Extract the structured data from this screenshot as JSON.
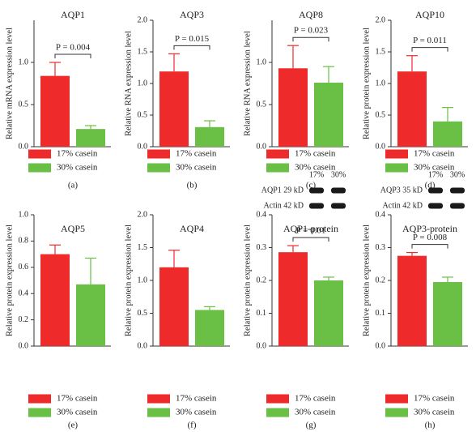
{
  "chart_data": [
    {
      "type": "bar",
      "panel": "(a)",
      "title": "AQP1",
      "ylabel": "Relative mRNA expression level",
      "annotation": "P = 0.004",
      "ylim": [
        0,
        1.5
      ],
      "yticks": [
        {
          "value": 0,
          "label": "0.0"
        },
        0.5,
        {
          "value": 1,
          "label": "1.0"
        }
      ],
      "series": [
        {
          "name": "17% casein",
          "color": "#ee2a2a",
          "values": [
            0.84
          ],
          "errors": [
            0.16
          ]
        },
        {
          "name": "30% casein",
          "color": "#6abf45",
          "values": [
            0.21
          ],
          "errors": [
            0.04
          ]
        }
      ]
    },
    {
      "type": "bar",
      "panel": "(b)",
      "title": "AQP3",
      "ylabel": "Relative RNA expression level",
      "annotation": "P = 0.015",
      "ylim": [
        0,
        2
      ],
      "yticks": [
        {
          "value": 0,
          "label": "0.0"
        },
        0.5,
        {
          "value": 1,
          "label": "1.0"
        },
        1.5,
        {
          "value": 2,
          "label": "2.0"
        }
      ],
      "series": [
        {
          "name": "17% casein",
          "color": "#ee2a2a",
          "values": [
            1.19
          ],
          "errors": [
            0.28
          ]
        },
        {
          "name": "30% casein",
          "color": "#6abf45",
          "values": [
            0.31
          ],
          "errors": [
            0.1
          ]
        }
      ]
    },
    {
      "type": "bar",
      "panel": "(c)",
      "title": "AQP8",
      "ylabel": "Relative RNA expression level",
      "annotation": "P = 0.023",
      "ylim": [
        0,
        1.5
      ],
      "yticks": [
        {
          "value": 0,
          "label": "0.0"
        },
        0.5,
        {
          "value": 1,
          "label": "1.0"
        }
      ],
      "series": [
        {
          "name": "17% casein",
          "color": "#ee2a2a",
          "values": [
            0.93
          ],
          "errors": [
            0.27
          ]
        },
        {
          "name": "30% casein",
          "color": "#6abf45",
          "values": [
            0.76
          ],
          "errors": [
            0.19
          ]
        }
      ]
    },
    {
      "type": "bar",
      "panel": "(d)",
      "title": "AQP10",
      "ylabel": "Relative protein expression level",
      "annotation": "P = 0.011",
      "ylim": [
        0,
        2
      ],
      "yticks": [
        {
          "value": 0,
          "label": "0.0"
        },
        0.5,
        {
          "value": 1,
          "label": "1.0"
        },
        1.5,
        {
          "value": 2,
          "label": "2.0"
        }
      ],
      "series": [
        {
          "name": "17% casein",
          "color": "#ee2a2a",
          "values": [
            1.19
          ],
          "errors": [
            0.25
          ]
        },
        {
          "name": "30% casein",
          "color": "#6abf45",
          "values": [
            0.4
          ],
          "errors": [
            0.22
          ]
        }
      ]
    },
    {
      "type": "bar",
      "panel": "(e)",
      "title": "AQP5",
      "ylabel": "Relative protein expression level",
      "ylim": [
        0,
        1
      ],
      "yticks": [
        {
          "value": 0,
          "label": "0.0"
        },
        0.2,
        0.4,
        0.6,
        0.8,
        {
          "value": 1,
          "label": "1.0"
        }
      ],
      "series": [
        {
          "name": "17% casein",
          "color": "#ee2a2a",
          "values": [
            0.7
          ],
          "errors": [
            0.07
          ]
        },
        {
          "name": "30% casein",
          "color": "#6abf45",
          "values": [
            0.47
          ],
          "errors": [
            0.2
          ]
        }
      ]
    },
    {
      "type": "bar",
      "panel": "(f)",
      "title": "AQP4",
      "ylabel": "Relative protein expression level",
      "ylim": [
        0,
        2
      ],
      "yticks": [
        {
          "value": 0,
          "label": "0.0"
        },
        0.5,
        {
          "value": 1,
          "label": "1.0"
        },
        1.5,
        {
          "value": 2,
          "label": "2.0"
        }
      ],
      "series": [
        {
          "name": "17% casein",
          "color": "#ee2a2a",
          "values": [
            1.2
          ],
          "errors": [
            0.26
          ]
        },
        {
          "name": "30% casein",
          "color": "#6abf45",
          "values": [
            0.55
          ],
          "errors": [
            0.05
          ]
        }
      ]
    },
    {
      "type": "bar",
      "panel": "(g)",
      "title": "AQP1-protein",
      "ylabel": "Relative protein expression level",
      "annotation": "P = 0.01",
      "ylim": [
        0,
        0.4
      ],
      "yticks": [
        {
          "value": 0,
          "label": "0.0"
        },
        0.1,
        0.2,
        0.3,
        0.4
      ],
      "blot": {
        "rows": [
          "AQP1 29 kD",
          "Actin 42 kD"
        ],
        "lanes": [
          "17%",
          "30%"
        ]
      },
      "series": [
        {
          "name": "17% casein",
          "color": "#ee2a2a",
          "values": [
            0.286
          ],
          "errors": [
            0.02
          ]
        },
        {
          "name": "30% casein",
          "color": "#6abf45",
          "values": [
            0.2
          ],
          "errors": [
            0.01
          ]
        }
      ]
    },
    {
      "type": "bar",
      "panel": "(h)",
      "title": "AQP3-protein",
      "ylabel": "Relative protein expression level",
      "annotation": "P = 0.008",
      "ylim": [
        0,
        0.4
      ],
      "yticks": [
        {
          "value": 0,
          "label": "0.0"
        },
        0.1,
        0.2,
        0.3,
        0.4
      ],
      "blot": {
        "rows": [
          "AQP3 35 kD",
          "Actin 42 kD"
        ],
        "lanes": [
          "17%",
          "30%"
        ]
      },
      "series": [
        {
          "name": "17% casein",
          "color": "#ee2a2a",
          "values": [
            0.275
          ],
          "errors": [
            0.01
          ]
        },
        {
          "name": "30% casein",
          "color": "#6abf45",
          "values": [
            0.195
          ],
          "errors": [
            0.015
          ]
        }
      ]
    }
  ]
}
